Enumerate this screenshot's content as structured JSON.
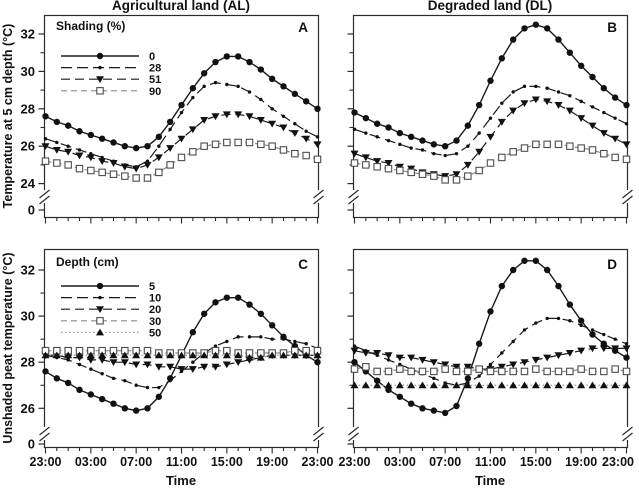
{
  "figure": {
    "background": "#ffffff",
    "line_black": "#1a1a1a",
    "line_gray": "#8c8c8c"
  },
  "chart_data": [
    {
      "panel_label": "A",
      "type": "line",
      "title": "Agricultural land (AL)",
      "ylabel": "Temperature at 5 cm depth (°C)",
      "xlabel": "",
      "legend_title": "Shading (%)",
      "x_points": "hourly from 23:00 to 23:00",
      "x_tick_labels": [
        "23:00",
        "03:00",
        "07:00",
        "11:00",
        "15:00",
        "19:00",
        "23:00"
      ],
      "y_ticks": [
        24,
        26,
        28,
        30,
        32
      ],
      "y_zero_label": "0",
      "ylim": [
        24,
        33
      ],
      "axis_break": true,
      "series": [
        {
          "name": "0",
          "marker": "filled-circle",
          "line_style": "solid",
          "color": "#1a1a1a",
          "marker_color": "#111111",
          "values": [
            27.6,
            27.3,
            27.1,
            26.8,
            26.6,
            26.4,
            26.2,
            26.0,
            25.9,
            26.0,
            26.5,
            27.3,
            28.2,
            29.1,
            29.9,
            30.5,
            30.8,
            30.8,
            30.5,
            30.1,
            29.6,
            29.2,
            28.8,
            28.4,
            28.0
          ]
        },
        {
          "name": "28",
          "marker": "dot",
          "line_style": "long-dash",
          "color": "#1a1a1a",
          "marker_color": "#111111",
          "values": [
            26.4,
            26.2,
            26.0,
            25.8,
            25.6,
            25.4,
            25.2,
            25.0,
            24.9,
            25.2,
            26.0,
            26.9,
            27.8,
            28.6,
            29.2,
            29.4,
            29.3,
            29.2,
            28.9,
            28.5,
            28.0,
            27.6,
            27.2,
            26.8,
            26.5
          ]
        },
        {
          "name": "51",
          "marker": "triangle-down",
          "line_style": "dash",
          "color": "#1a1a1a",
          "marker_color": "#111111",
          "values": [
            26.0,
            25.8,
            25.7,
            25.5,
            25.4,
            25.2,
            25.1,
            24.9,
            24.8,
            25.0,
            25.4,
            25.9,
            26.4,
            26.9,
            27.4,
            27.6,
            27.7,
            27.7,
            27.6,
            27.4,
            27.2,
            27.0,
            26.7,
            26.4,
            26.1
          ]
        },
        {
          "name": "90",
          "marker": "open-square",
          "line_style": "short-dash",
          "color": "#8c8c8c",
          "marker_color": "#4d4d4d",
          "values": [
            25.2,
            25.1,
            25.0,
            24.8,
            24.7,
            24.6,
            24.5,
            24.4,
            24.3,
            24.3,
            24.6,
            25.0,
            25.4,
            25.7,
            26.0,
            26.1,
            26.2,
            26.2,
            26.2,
            26.1,
            26.0,
            25.8,
            25.6,
            25.5,
            25.3
          ]
        }
      ]
    },
    {
      "panel_label": "B",
      "type": "line",
      "title": "Degraded land (DL)",
      "ylabel": "",
      "xlabel": "",
      "legend_title": null,
      "x_points": "hourly from 23:00 to 23:00",
      "x_tick_labels": [
        "23:00",
        "03:00",
        "07:00",
        "11:00",
        "15:00",
        "19:00",
        "23:00"
      ],
      "y_ticks": [
        24,
        26,
        28,
        30,
        32
      ],
      "y_zero_label": "0",
      "ylim": [
        24,
        33
      ],
      "axis_break": true,
      "series": [
        {
          "name": "0",
          "marker": "filled-circle",
          "line_style": "solid",
          "color": "#1a1a1a",
          "marker_color": "#111111",
          "values": [
            27.8,
            27.5,
            27.2,
            27.0,
            26.7,
            26.5,
            26.3,
            26.1,
            26.0,
            26.3,
            27.1,
            28.2,
            29.5,
            30.7,
            31.7,
            32.3,
            32.5,
            32.3,
            31.7,
            31.0,
            30.3,
            29.7,
            29.1,
            28.6,
            28.2
          ]
        },
        {
          "name": "28",
          "marker": "dot",
          "line_style": "long-dash",
          "color": "#1a1a1a",
          "marker_color": "#111111",
          "values": [
            26.9,
            26.7,
            26.5,
            26.3,
            26.1,
            25.9,
            25.8,
            25.6,
            25.5,
            25.6,
            26.0,
            26.7,
            27.5,
            28.3,
            28.9,
            29.2,
            29.2,
            29.1,
            28.9,
            28.7,
            28.4,
            28.1,
            27.8,
            27.5,
            27.2
          ]
        },
        {
          "name": "51",
          "marker": "triangle-down",
          "line_style": "dash",
          "color": "#1a1a1a",
          "marker_color": "#111111",
          "values": [
            25.6,
            25.4,
            25.2,
            25.1,
            24.9,
            24.8,
            24.6,
            24.5,
            24.4,
            24.5,
            25.0,
            25.7,
            26.5,
            27.3,
            27.9,
            28.3,
            28.5,
            28.4,
            28.2,
            27.9,
            27.5,
            27.1,
            26.7,
            26.4,
            26.1
          ]
        },
        {
          "name": "90",
          "marker": "open-square",
          "line_style": "short-dash",
          "color": "#8c8c8c",
          "marker_color": "#4d4d4d",
          "values": [
            25.1,
            25.0,
            24.9,
            24.8,
            24.7,
            24.6,
            24.5,
            24.4,
            24.2,
            24.2,
            24.4,
            24.7,
            25.1,
            25.4,
            25.7,
            25.9,
            26.1,
            26.1,
            26.1,
            26.0,
            25.9,
            25.8,
            25.6,
            25.4,
            25.3
          ]
        }
      ]
    },
    {
      "panel_label": "C",
      "type": "line",
      "title": "Agricultural land (AL)",
      "ylabel": "Unshaded peat temperature (°C)",
      "xlabel": "Time",
      "legend_title": "Depth (cm)",
      "x_points": "hourly from 23:00 to 23:00",
      "x_tick_labels": [
        "23:00",
        "03:00",
        "07:00",
        "11:00",
        "15:00",
        "19:00",
        "23:00"
      ],
      "y_ticks": [
        26,
        28,
        30,
        32
      ],
      "y_zero_label": "0",
      "ylim": [
        25.5,
        33
      ],
      "axis_break": true,
      "series": [
        {
          "name": "5",
          "marker": "filled-circle",
          "line_style": "solid",
          "color": "#1a1a1a",
          "marker_color": "#111111",
          "values": [
            27.6,
            27.3,
            27.1,
            26.8,
            26.6,
            26.4,
            26.2,
            26.0,
            25.9,
            26.0,
            26.5,
            27.3,
            28.3,
            29.3,
            30.1,
            30.6,
            30.8,
            30.8,
            30.5,
            30.1,
            29.6,
            29.1,
            28.7,
            28.3,
            28.0
          ]
        },
        {
          "name": "10",
          "marker": "dot",
          "line_style": "long-dash",
          "color": "#1a1a1a",
          "marker_color": "#111111",
          "values": [
            28.3,
            28.2,
            28.1,
            27.9,
            27.7,
            27.5,
            27.3,
            27.2,
            27.0,
            26.9,
            26.9,
            27.2,
            27.6,
            28.0,
            28.4,
            28.7,
            28.9,
            29.1,
            29.1,
            29.1,
            29.0,
            29.0,
            28.9,
            28.8,
            28.6
          ]
        },
        {
          "name": "20",
          "marker": "triangle-down",
          "line_style": "dash",
          "color": "#1a1a1a",
          "marker_color": "#111111",
          "values": [
            28.3,
            28.3,
            28.2,
            28.2,
            28.1,
            28.1,
            28.0,
            28.0,
            27.9,
            27.9,
            27.8,
            27.8,
            27.7,
            27.7,
            27.8,
            27.8,
            27.9,
            28.0,
            28.1,
            28.2,
            28.3,
            28.3,
            28.3,
            28.3,
            28.3
          ]
        },
        {
          "name": "30",
          "marker": "open-square",
          "line_style": "short-dash",
          "color": "#8c8c8c",
          "marker_color": "#4d4d4d",
          "values": [
            28.5,
            28.5,
            28.5,
            28.5,
            28.5,
            28.5,
            28.5,
            28.5,
            28.5,
            28.5,
            28.4,
            28.4,
            28.4,
            28.4,
            28.4,
            28.5,
            28.5,
            28.4,
            28.4,
            28.4,
            28.4,
            28.4,
            28.5,
            28.5,
            28.5
          ]
        },
        {
          "name": "50",
          "marker": "triangle-up",
          "line_style": "dotted",
          "color": "#9a9a9a",
          "marker_color": "#111111",
          "values": [
            28.3,
            28.3,
            28.3,
            28.3,
            28.3,
            28.3,
            28.3,
            28.3,
            28.3,
            28.3,
            28.3,
            28.3,
            28.3,
            28.3,
            28.3,
            28.3,
            28.3,
            28.3,
            28.2,
            28.2,
            28.3,
            28.3,
            28.3,
            28.3,
            28.3
          ]
        }
      ]
    },
    {
      "panel_label": "D",
      "type": "line",
      "title": "Degraded land (DL)",
      "ylabel": "",
      "xlabel": "Time",
      "legend_title": null,
      "x_points": "hourly from 23:00 to 23:00",
      "x_tick_labels": [
        "23:00",
        "03:00",
        "07:00",
        "11:00",
        "15:00",
        "19:00",
        "23:00"
      ],
      "y_ticks": [
        26,
        28,
        30,
        32
      ],
      "y_zero_label": "0",
      "ylim": [
        25.5,
        33
      ],
      "axis_break": true,
      "series": [
        {
          "name": "5",
          "marker": "filled-circle",
          "line_style": "solid",
          "color": "#1a1a1a",
          "marker_color": "#111111",
          "values": [
            28.0,
            27.6,
            27.2,
            26.8,
            26.5,
            26.2,
            26.0,
            25.9,
            25.8,
            26.1,
            27.3,
            28.8,
            30.2,
            31.3,
            32.0,
            32.4,
            32.4,
            32.0,
            31.3,
            30.5,
            29.8,
            29.2,
            28.8,
            28.5,
            28.2
          ]
        },
        {
          "name": "10",
          "marker": "dot",
          "line_style": "long-dash",
          "color": "#1a1a1a",
          "marker_color": "#111111",
          "values": [
            28.7,
            28.5,
            28.3,
            28.1,
            27.9,
            27.7,
            27.5,
            27.3,
            27.1,
            27.0,
            27.1,
            27.4,
            27.9,
            28.4,
            28.9,
            29.4,
            29.7,
            29.9,
            29.9,
            29.8,
            29.6,
            29.4,
            29.2,
            29.0,
            28.8
          ]
        },
        {
          "name": "20",
          "marker": "triangle-down",
          "line_style": "dash",
          "color": "#1a1a1a",
          "marker_color": "#111111",
          "values": [
            28.5,
            28.4,
            28.4,
            28.3,
            28.2,
            28.2,
            28.1,
            28.0,
            27.9,
            27.8,
            27.8,
            27.7,
            27.7,
            27.8,
            27.9,
            28.0,
            28.1,
            28.2,
            28.3,
            28.4,
            28.5,
            28.6,
            28.6,
            28.6,
            28.6
          ]
        },
        {
          "name": "30",
          "marker": "open-square",
          "line_style": "short-dash",
          "color": "#8c8c8c",
          "marker_color": "#4d4d4d",
          "values": [
            27.7,
            27.8,
            27.6,
            27.6,
            27.7,
            27.6,
            27.6,
            27.6,
            27.7,
            27.6,
            27.6,
            27.7,
            27.6,
            27.6,
            27.6,
            27.6,
            27.7,
            27.6,
            27.6,
            27.6,
            27.7,
            27.6,
            27.6,
            27.7,
            27.6
          ]
        },
        {
          "name": "50",
          "marker": "triangle-up",
          "line_style": "dotted",
          "color": "#9a9a9a",
          "marker_color": "#111111",
          "values": [
            27.0,
            27.0,
            27.0,
            27.0,
            27.0,
            27.0,
            27.0,
            27.0,
            27.0,
            27.0,
            27.0,
            27.0,
            27.0,
            27.0,
            27.0,
            27.0,
            27.0,
            27.0,
            27.0,
            27.0,
            27.0,
            27.0,
            27.0,
            27.0,
            27.0
          ]
        }
      ]
    }
  ]
}
